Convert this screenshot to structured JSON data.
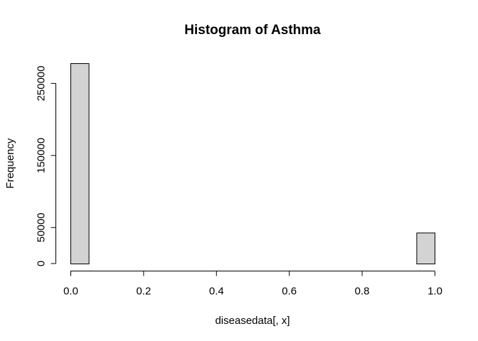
{
  "chart_data": {
    "type": "bar",
    "title": "Histogram of Asthma",
    "xlabel": "diseasedata[, x]",
    "ylabel": "Frequency",
    "bin_edges": [
      0,
      0.05,
      0.1,
      0.15,
      0.2,
      0.25,
      0.3,
      0.35,
      0.4,
      0.45,
      0.5,
      0.55,
      0.6,
      0.65,
      0.7,
      0.75,
      0.8,
      0.85,
      0.9,
      0.95,
      1.0
    ],
    "values": [
      278000,
      0,
      0,
      0,
      0,
      0,
      0,
      0,
      0,
      0,
      0,
      0,
      0,
      0,
      0,
      0,
      0,
      0,
      0,
      43000
    ],
    "xlim": [
      0,
      1
    ],
    "ylim": [
      0,
      278000
    ],
    "x_ticks": [
      0,
      0.2,
      0.4,
      0.6,
      0.8,
      1.0
    ],
    "x_tick_labels": [
      "0.0",
      "0.2",
      "0.4",
      "0.6",
      "0.8",
      "1.0"
    ],
    "y_ticks": [
      0,
      50000,
      150000,
      250000
    ],
    "y_tick_labels": [
      "0",
      "50000",
      "150000",
      "250000"
    ],
    "bar_color": "#d3d3d3",
    "grid": false
  }
}
